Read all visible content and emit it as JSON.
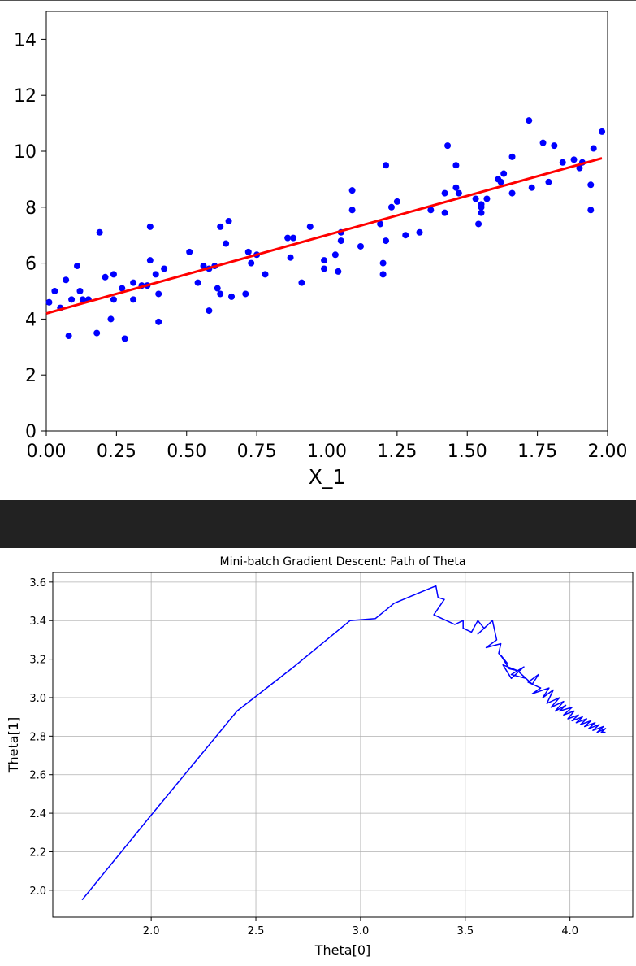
{
  "chart_data": [
    {
      "type": "scatter",
      "title": "",
      "xlabel": "X_1",
      "ylabel": "",
      "xlim": [
        0,
        2
      ],
      "ylim": [
        0,
        15
      ],
      "xticks": [
        "0.00",
        "0.25",
        "0.50",
        "0.75",
        "1.00",
        "1.25",
        "1.50",
        "1.75",
        "2.00"
      ],
      "yticks": [
        "0",
        "2",
        "4",
        "6",
        "8",
        "10",
        "12",
        "14"
      ],
      "grid": false,
      "colors": {
        "points": "#0000ff",
        "line": "#ff0000"
      },
      "series": [
        {
          "kind": "points",
          "x": [
            0.01,
            0.03,
            0.05,
            0.07,
            0.08,
            0.09,
            0.11,
            0.12,
            0.13,
            0.15,
            0.18,
            0.19,
            0.21,
            0.23,
            0.24,
            0.24,
            0.27,
            0.28,
            0.31,
            0.31,
            0.34,
            0.36,
            0.37,
            0.37,
            0.39,
            0.4,
            0.4,
            0.42,
            0.51,
            0.54,
            0.56,
            0.58,
            0.58,
            0.6,
            0.61,
            0.62,
            0.62,
            0.64,
            0.65,
            0.66,
            0.71,
            0.72,
            0.73,
            0.75,
            0.78,
            0.86,
            0.87,
            0.88,
            0.91,
            0.94,
            0.99,
            0.99,
            1.03,
            1.04,
            1.05,
            1.05,
            1.09,
            1.09,
            1.12,
            1.19,
            1.2,
            1.2,
            1.21,
            1.21,
            1.23,
            1.25,
            1.28,
            1.33,
            1.37,
            1.42,
            1.42,
            1.43,
            1.46,
            1.46,
            1.47,
            1.53,
            1.54,
            1.55,
            1.55,
            1.55,
            1.57,
            1.61,
            1.62,
            1.63,
            1.66,
            1.66,
            1.72,
            1.73,
            1.77,
            1.79,
            1.81,
            1.84,
            1.88,
            1.9,
            1.91,
            1.94,
            1.94,
            1.95,
            1.98
          ],
          "y": [
            4.6,
            5.0,
            4.4,
            5.4,
            3.4,
            4.7,
            5.9,
            5.0,
            4.7,
            4.7,
            3.5,
            7.1,
            5.5,
            4.0,
            5.6,
            4.7,
            5.1,
            3.3,
            5.3,
            4.7,
            5.2,
            5.2,
            6.1,
            7.3,
            5.6,
            4.9,
            3.9,
            5.8,
            6.4,
            5.3,
            5.9,
            5.8,
            4.3,
            5.9,
            5.1,
            4.9,
            7.3,
            6.7,
            7.5,
            4.8,
            4.9,
            6.4,
            6.0,
            6.3,
            5.6,
            6.9,
            6.2,
            6.9,
            5.3,
            7.3,
            6.1,
            5.8,
            6.3,
            5.7,
            6.8,
            7.1,
            8.6,
            7.9,
            6.6,
            7.4,
            5.6,
            6.0,
            6.8,
            9.5,
            8.0,
            8.2,
            7.0,
            7.1,
            7.9,
            7.8,
            8.5,
            10.2,
            9.5,
            8.7,
            8.5,
            8.3,
            7.4,
            7.8,
            8.0,
            8.1,
            8.3,
            9.0,
            8.9,
            9.2,
            8.5,
            9.8,
            11.1,
            8.7,
            10.3,
            8.9,
            10.2,
            9.6,
            9.7,
            9.4,
            9.6,
            7.9,
            8.8,
            10.1,
            10.7
          ]
        },
        {
          "kind": "line",
          "x": [
            0.0,
            1.98
          ],
          "y": [
            4.2,
            9.75
          ]
        }
      ]
    },
    {
      "type": "line",
      "title": "Mini-batch Gradient Descent: Path of Theta",
      "xlabel": "Theta[0]",
      "ylabel": "Theta[1]",
      "xlim": [
        1.53,
        4.3
      ],
      "ylim": [
        1.86,
        3.65
      ],
      "xticks": [
        "2.0",
        "2.5",
        "3.0",
        "3.5",
        "4.0"
      ],
      "yticks": [
        "2.0",
        "2.2",
        "2.4",
        "2.6",
        "2.8",
        "3.0",
        "3.2",
        "3.4",
        "3.6"
      ],
      "grid": true,
      "colors": {
        "line": "#0000ff"
      },
      "series": [
        {
          "x": [
            1.67,
            2.0,
            2.41,
            2.67,
            2.95,
            3.07,
            3.16,
            3.27,
            3.36,
            3.37,
            3.4,
            3.35,
            3.45,
            3.49,
            3.49,
            3.53,
            3.56,
            3.59,
            3.56,
            3.63,
            3.65,
            3.6,
            3.67,
            3.66,
            3.7,
            3.67,
            3.71,
            3.75,
            3.68,
            3.72,
            3.78,
            3.72,
            3.79,
            3.76,
            3.82,
            3.85,
            3.8,
            3.86,
            3.82,
            3.9,
            3.87,
            3.92,
            3.89,
            3.95,
            3.91,
            3.97,
            3.93,
            3.98,
            3.95,
            4.01,
            3.97,
            4.02,
            3.99,
            4.04,
            4.01,
            4.06,
            4.03,
            4.08,
            4.05,
            4.1,
            4.07,
            4.12,
            4.09,
            4.14,
            4.11,
            4.16,
            4.13,
            4.17,
            4.15,
            4.17
          ],
          "y": [
            1.95,
            2.39,
            2.93,
            3.15,
            3.4,
            3.41,
            3.49,
            3.54,
            3.58,
            3.52,
            3.51,
            3.43,
            3.38,
            3.4,
            3.36,
            3.34,
            3.4,
            3.36,
            3.33,
            3.4,
            3.3,
            3.26,
            3.28,
            3.23,
            3.18,
            3.22,
            3.15,
            3.14,
            3.17,
            3.1,
            3.16,
            3.12,
            3.1,
            3.13,
            3.07,
            3.12,
            3.08,
            3.05,
            3.02,
            3.05,
            3.0,
            3.04,
            2.97,
            3.0,
            2.95,
            2.98,
            2.93,
            2.96,
            2.93,
            2.95,
            2.91,
            2.93,
            2.89,
            2.91,
            2.88,
            2.9,
            2.87,
            2.89,
            2.86,
            2.88,
            2.85,
            2.87,
            2.84,
            2.86,
            2.83,
            2.85,
            2.82,
            2.84,
            2.82,
            2.82
          ]
        }
      ]
    }
  ]
}
